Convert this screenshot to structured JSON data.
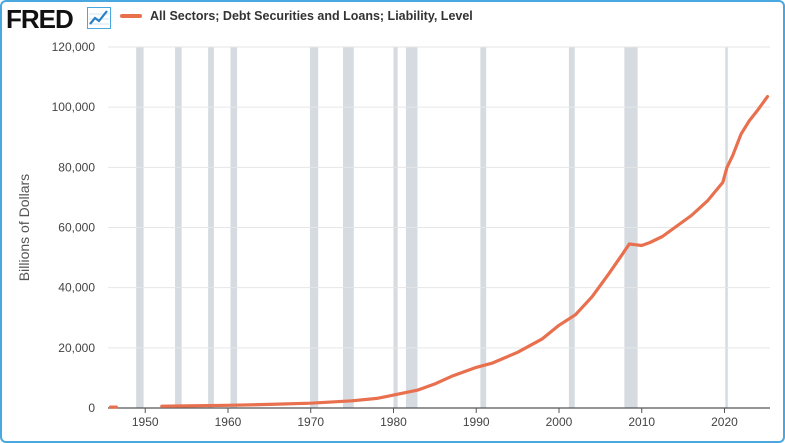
{
  "logo": {
    "text": "FRED",
    "icon": "fred-chart-icon"
  },
  "colors": {
    "line": "#e8704e",
    "recession": "#d5dbe1",
    "grid": "#e6e6e6",
    "axis": "#555555",
    "border": "#4aa8e0"
  },
  "chart_data": {
    "type": "line",
    "title": "",
    "xlabel": "",
    "ylabel": "Billions of Dollars",
    "xlim": [
      1945.5,
      2025.5
    ],
    "ylim": [
      0,
      120000
    ],
    "x_ticks": [
      1950,
      1960,
      1970,
      1980,
      1990,
      2000,
      2010,
      2020
    ],
    "x_tick_labels": [
      "1950",
      "1960",
      "1970",
      "1980",
      "1990",
      "2000",
      "2010",
      "2020"
    ],
    "y_ticks": [
      0,
      20000,
      40000,
      60000,
      80000,
      100000,
      120000
    ],
    "y_tick_labels": [
      "0",
      "20,000",
      "40,000",
      "60,000",
      "80,000",
      "100,000",
      "120,000"
    ],
    "grid": "horizontal",
    "legend": "top",
    "recessions": [
      [
        1948.9,
        1949.8
      ],
      [
        1953.6,
        1954.4
      ],
      [
        1957.6,
        1958.3
      ],
      [
        1960.3,
        1961.1
      ],
      [
        1969.9,
        1970.9
      ],
      [
        1973.9,
        1975.2
      ],
      [
        1980.0,
        1980.5
      ],
      [
        1981.5,
        1982.9
      ],
      [
        1990.5,
        1991.2
      ],
      [
        2001.2,
        2001.9
      ],
      [
        2007.9,
        2009.5
      ],
      [
        2020.1,
        2020.4
      ]
    ],
    "series": [
      {
        "name": "All Sectors; Debt Securities and Loans; Liability, Level",
        "segments": [
          [
            [
              1945.8,
              300
            ],
            [
              1946.5,
              300
            ]
          ],
          [
            [
              1952.0,
              600
            ],
            [
              1955,
              700
            ],
            [
              1960,
              900
            ],
            [
              1965,
              1200
            ],
            [
              1970,
              1600
            ],
            [
              1975,
              2400
            ],
            [
              1978,
              3200
            ],
            [
              1980,
              4300
            ],
            [
              1983,
              6000
            ],
            [
              1985,
              8000
            ],
            [
              1987,
              10500
            ],
            [
              1990,
              13500
            ],
            [
              1992,
              15000
            ],
            [
              1995,
              18500
            ],
            [
              1998,
              23000
            ],
            [
              2000,
              27500
            ],
            [
              2002,
              31000
            ],
            [
              2004,
              37000
            ],
            [
              2006,
              44500
            ],
            [
              2007.5,
              50500
            ],
            [
              2008.5,
              54500
            ],
            [
              2010,
              54000
            ],
            [
              2011,
              55000
            ],
            [
              2012.5,
              57000
            ],
            [
              2014,
              60000
            ],
            [
              2016,
              64000
            ],
            [
              2018,
              69000
            ],
            [
              2019.8,
              75000
            ],
            [
              2020.3,
              80000
            ],
            [
              2021,
              84000
            ],
            [
              2022,
              91000
            ],
            [
              2023,
              95500
            ],
            [
              2024,
              99000
            ],
            [
              2025.2,
              103500
            ]
          ]
        ]
      }
    ]
  }
}
